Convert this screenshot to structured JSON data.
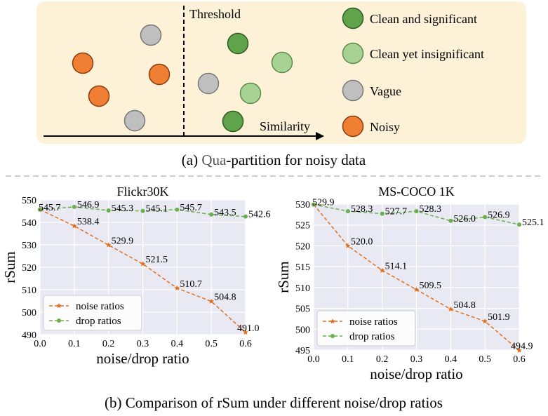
{
  "partition": {
    "threshold_label": "Threshold",
    "similarity_label": "Similarity",
    "legend": [
      {
        "label": "Clean and significant",
        "color": "#5fa34a"
      },
      {
        "label": "Clean yet insignificant",
        "color": "#a6d393"
      },
      {
        "label": "Vague",
        "color": "#bfbfbf"
      },
      {
        "label": "Noisy",
        "color": "#ef7f33"
      }
    ],
    "caption_a_prefix": "(a) ",
    "caption_a_highlight": "Qua",
    "caption_a_suffix": "-partition for noisy data"
  },
  "caption_b": "(b) Comparison of rSum under different noise/drop ratios",
  "chart_data": [
    {
      "type": "line",
      "title": "Flickr30K",
      "xlabel": "noise/drop ratio",
      "ylabel": "rSum",
      "x": [
        0.0,
        0.1,
        0.2,
        0.3,
        0.4,
        0.5,
        0.6
      ],
      "xlim": [
        0.0,
        0.6
      ],
      "ylim": [
        490,
        550
      ],
      "yticks": [
        490,
        500,
        510,
        520,
        530,
        540,
        550
      ],
      "xticks": [
        "0.0",
        "0.1",
        "0.2",
        "0.3",
        "0.4",
        "0.5",
        "0.6"
      ],
      "series": [
        {
          "name": "noise ratios",
          "color": "#e07020",
          "marker": "star",
          "values": [
            545.7,
            538.4,
            529.9,
            521.5,
            510.7,
            504.8,
            491.0
          ],
          "labels": [
            "",
            "538.4",
            "529.9",
            "521.5",
            "510.7",
            "504.8",
            "491.0"
          ]
        },
        {
          "name": "drop ratios",
          "color": "#6ab04c",
          "marker": "circle",
          "values": [
            545.7,
            546.9,
            545.3,
            545.1,
            545.7,
            543.5,
            542.6
          ],
          "labels": [
            "545.7",
            "546.9",
            "545.3",
            "545.1",
            "545.7",
            "543.5",
            "542.6"
          ]
        }
      ],
      "legend_position": "lower-left",
      "grid": true
    },
    {
      "type": "line",
      "title": "MS-COCO 1K",
      "xlabel": "noise/drop ratio",
      "ylabel": "rSum",
      "x": [
        0.0,
        0.1,
        0.2,
        0.3,
        0.4,
        0.5,
        0.6
      ],
      "xlim": [
        0.0,
        0.6
      ],
      "ylim": [
        495,
        530
      ],
      "yticks": [
        495,
        500,
        505,
        510,
        515,
        520,
        525,
        530
      ],
      "xticks": [
        "0.0",
        "0.1",
        "0.2",
        "0.3",
        "0.4",
        "0.5",
        "0.6"
      ],
      "series": [
        {
          "name": "noise ratios",
          "color": "#e07020",
          "marker": "star",
          "values": [
            529.9,
            520.0,
            514.1,
            509.5,
            504.8,
            501.9,
            494.9
          ],
          "labels": [
            "",
            "520.0",
            "514.1",
            "509.5",
            "504.8",
            "501.9",
            "494.9"
          ]
        },
        {
          "name": "drop ratios",
          "color": "#6ab04c",
          "marker": "circle",
          "values": [
            529.9,
            528.3,
            527.7,
            528.3,
            526.0,
            526.9,
            525.1
          ],
          "labels": [
            "529.9",
            "528.3",
            "527.7",
            "528.3",
            "526.0",
            "526.9",
            "525.1"
          ]
        }
      ],
      "legend_position": "lower-left",
      "grid": true
    }
  ]
}
